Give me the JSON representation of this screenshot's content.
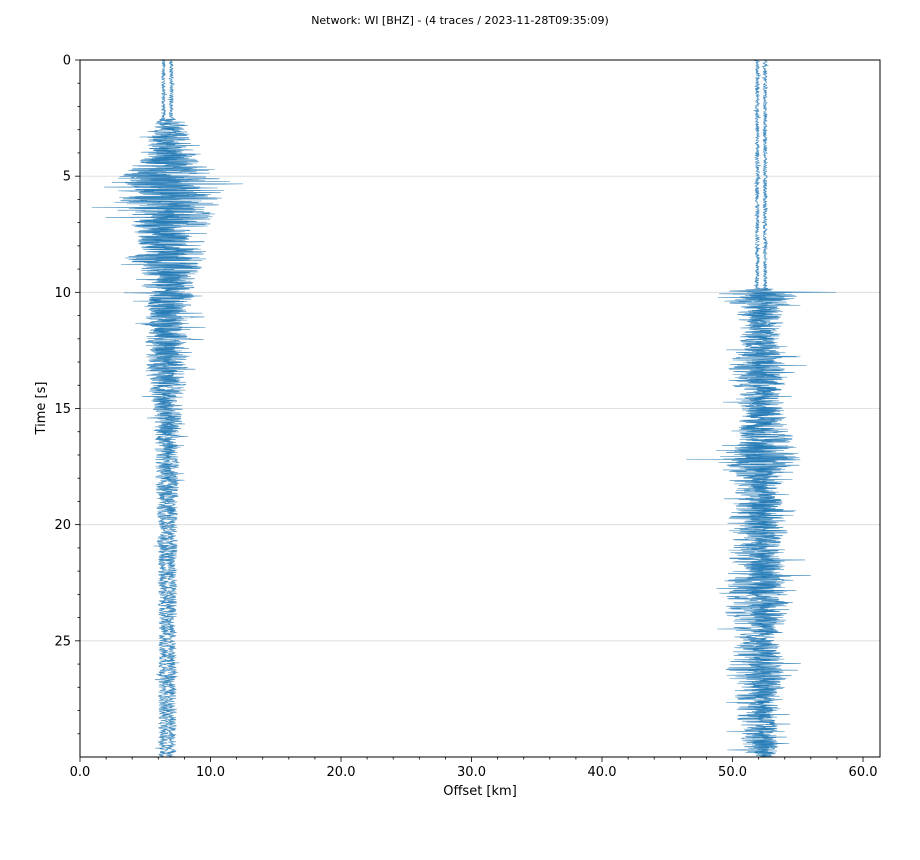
{
  "chart_data": {
    "type": "line",
    "title": "Network: WI [BHZ] - (4 traces / 2023-11-28T09:35:09)",
    "xlabel": "Offset [km]",
    "ylabel": "Time [s]",
    "xlim": [
      0,
      61.3
    ],
    "ylim": [
      30,
      0
    ],
    "y_inverted": true,
    "x_ticks": [
      0,
      10,
      20,
      30,
      40,
      50,
      60
    ],
    "x_tick_labels": [
      "0.0",
      "10.0",
      "20.0",
      "30.0",
      "40.0",
      "50.0",
      "60.0"
    ],
    "y_ticks": [
      0,
      5,
      10,
      15,
      20,
      25
    ],
    "y_tick_labels": [
      "0",
      "5",
      "10",
      "15",
      "20",
      "25"
    ],
    "grid": "horizontal",
    "trace_color": "#1f77b4",
    "trace_count_in_title": 4,
    "series": [
      {
        "offset_km": 6.4,
        "time_range": [
          0,
          30
        ],
        "envelope": [
          [
            0,
            0.3
          ],
          [
            2.5,
            0.3
          ],
          [
            2.7,
            1.2
          ],
          [
            3.5,
            2.5
          ],
          [
            4.8,
            4.5
          ],
          [
            5.6,
            5.5
          ],
          [
            6.5,
            4.5
          ],
          [
            8.0,
            3.6
          ],
          [
            8.8,
            4.5
          ],
          [
            9.3,
            3.3
          ],
          [
            11.0,
            2.8
          ],
          [
            12.5,
            2.5
          ],
          [
            13.5,
            2.5
          ],
          [
            15.0,
            1.5
          ],
          [
            17.0,
            1.3
          ],
          [
            20.0,
            0.9
          ],
          [
            25.0,
            0.7
          ],
          [
            30.0,
            0.7
          ]
        ]
      },
      {
        "offset_km": 7.0,
        "time_range": [
          0,
          30
        ],
        "envelope": [
          [
            0,
            0.3
          ],
          [
            2.5,
            0.3
          ],
          [
            2.7,
            2.3
          ],
          [
            4.0,
            3.3
          ],
          [
            4.8,
            6.5
          ],
          [
            5.3,
            8.6
          ],
          [
            6.5,
            6.3
          ],
          [
            8.0,
            4.5
          ],
          [
            8.8,
            5.8
          ],
          [
            9.3,
            3.5
          ],
          [
            11.0,
            3.0
          ],
          [
            12.5,
            3.0
          ],
          [
            13.5,
            2.2
          ],
          [
            15.0,
            1.8
          ],
          [
            17.0,
            1.2
          ],
          [
            20.0,
            0.9
          ],
          [
            25.0,
            0.7
          ],
          [
            30.0,
            0.7
          ]
        ]
      },
      {
        "offset_km": 51.9,
        "time_range": [
          0,
          30
        ],
        "envelope": [
          [
            0,
            0.3
          ],
          [
            9.8,
            0.3
          ],
          [
            10.0,
            5.0
          ],
          [
            10.2,
            6.0
          ],
          [
            10.6,
            3.0
          ],
          [
            12.0,
            2.5
          ],
          [
            13.6,
            4.5
          ],
          [
            14.5,
            3.0
          ],
          [
            16.5,
            2.5
          ],
          [
            17.2,
            6.0
          ],
          [
            17.6,
            5.0
          ],
          [
            18.5,
            3.0
          ],
          [
            20.0,
            4.5
          ],
          [
            21.0,
            4.0
          ],
          [
            23.0,
            4.3
          ],
          [
            23.8,
            4.5
          ],
          [
            25.0,
            3.0
          ],
          [
            26.5,
            4.5
          ],
          [
            27.5,
            3.0
          ],
          [
            29.5,
            2.5
          ],
          [
            30.0,
            2.0
          ]
        ]
      },
      {
        "offset_km": 52.5,
        "time_range": [
          0,
          30
        ],
        "envelope": [
          [
            0,
            0.3
          ],
          [
            9.8,
            0.3
          ],
          [
            10.0,
            6.0
          ],
          [
            10.2,
            3.0
          ],
          [
            12.0,
            2.0
          ],
          [
            13.6,
            3.0
          ],
          [
            14.5,
            2.0
          ],
          [
            17.2,
            5.0
          ],
          [
            17.6,
            2.8
          ],
          [
            18.5,
            2.0
          ],
          [
            20.0,
            3.0
          ],
          [
            21.0,
            2.0
          ],
          [
            23.0,
            2.8
          ],
          [
            25.0,
            1.5
          ],
          [
            26.5,
            3.0
          ],
          [
            27.5,
            1.5
          ],
          [
            29.5,
            2.0
          ],
          [
            30.0,
            1.5
          ]
        ]
      }
    ]
  }
}
